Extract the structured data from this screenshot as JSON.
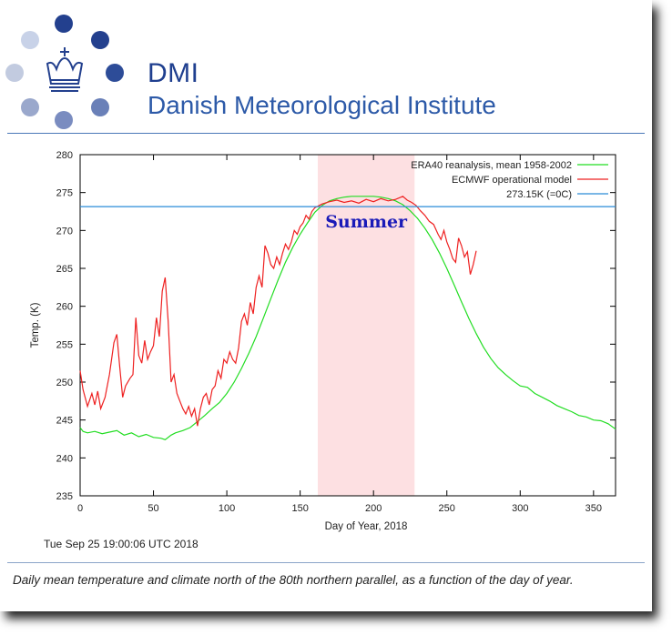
{
  "header": {
    "org_short": "DMI",
    "org_full": "Danish Meteorological Institute",
    "logo_colors": {
      "dark": "#23408e",
      "mid": "#7a90c4",
      "light": "#c8d2e8"
    }
  },
  "timestamp": "Tue Sep 25 19:00:06 UTC 2018",
  "caption": "Daily mean temperature and climate north of the 80th northern parallel, as a function of the day of year.",
  "chart_data": {
    "type": "line",
    "title": "",
    "xlabel": "Day of Year, 2018",
    "ylabel": "Temp. (K)",
    "xlim": [
      0,
      365
    ],
    "ylim": [
      235,
      280
    ],
    "xticks": [
      0,
      50,
      100,
      150,
      200,
      250,
      300,
      350
    ],
    "yticks": [
      235,
      240,
      245,
      250,
      255,
      260,
      265,
      270,
      275,
      280
    ],
    "grid": false,
    "legend_position": "top-right",
    "shaded_region": {
      "label": "Summer",
      "x_start": 162,
      "x_end": 228,
      "color": "#fde0e2"
    },
    "series": [
      {
        "name": "ERA40 reanalysis, mean 1958-2002",
        "color": "#22dd22",
        "x": [
          0,
          2,
          5,
          10,
          15,
          20,
          25,
          30,
          35,
          40,
          45,
          50,
          55,
          58,
          62,
          65,
          70,
          75,
          80,
          85,
          90,
          95,
          100,
          105,
          110,
          115,
          120,
          125,
          130,
          135,
          140,
          145,
          150,
          155,
          160,
          165,
          170,
          175,
          180,
          185,
          190,
          195,
          200,
          205,
          210,
          215,
          220,
          225,
          230,
          235,
          240,
          245,
          250,
          255,
          260,
          265,
          270,
          275,
          280,
          285,
          290,
          295,
          300,
          305,
          310,
          315,
          320,
          325,
          330,
          335,
          340,
          345,
          350,
          355,
          360,
          365
        ],
        "y": [
          244.0,
          243.5,
          243.3,
          243.5,
          243.2,
          243.4,
          243.6,
          243.0,
          243.3,
          242.8,
          243.1,
          242.7,
          242.6,
          242.4,
          243.0,
          243.3,
          243.6,
          244.0,
          244.8,
          245.6,
          246.5,
          247.3,
          248.5,
          250.0,
          251.8,
          253.8,
          256.0,
          258.5,
          261.0,
          263.5,
          265.8,
          267.8,
          269.5,
          271.0,
          272.4,
          273.3,
          273.9,
          274.2,
          274.4,
          274.5,
          274.5,
          274.5,
          274.5,
          274.4,
          274.2,
          273.9,
          273.4,
          272.6,
          271.6,
          270.3,
          268.8,
          267.0,
          265.0,
          262.8,
          260.6,
          258.4,
          256.4,
          254.6,
          253.1,
          251.9,
          251.0,
          250.2,
          249.5,
          249.3,
          248.5,
          248.0,
          247.5,
          246.9,
          246.5,
          246.1,
          245.6,
          245.4,
          245.0,
          244.9,
          244.5,
          243.8
        ]
      },
      {
        "name": "ECMWF operational model",
        "color": "#ee2020",
        "x": [
          0,
          2,
          5,
          8,
          10,
          12,
          14,
          17,
          20,
          23,
          25,
          27,
          29,
          31,
          34,
          36,
          38,
          40,
          42,
          44,
          46,
          48,
          50,
          52,
          54,
          56,
          58,
          60,
          62,
          64,
          66,
          68,
          70,
          72,
          74,
          76,
          78,
          80,
          82,
          84,
          86,
          88,
          90,
          92,
          94,
          96,
          98,
          100,
          102,
          104,
          106,
          108,
          110,
          112,
          114,
          116,
          118,
          120,
          122,
          124,
          126,
          128,
          130,
          132,
          134,
          136,
          138,
          140,
          142,
          144,
          146,
          148,
          150,
          152,
          154,
          156,
          158,
          160,
          165,
          170,
          175,
          180,
          185,
          190,
          195,
          200,
          205,
          210,
          215,
          220,
          223,
          226,
          229,
          232,
          235,
          238,
          241,
          244,
          246,
          248,
          250,
          252,
          254,
          256,
          258,
          260,
          262,
          264,
          266,
          268,
          270
        ],
        "y": [
          251.5,
          249.0,
          246.8,
          248.5,
          247.0,
          248.8,
          246.5,
          248.0,
          251.0,
          255.2,
          256.3,
          252.0,
          248.0,
          249.5,
          250.5,
          251.0,
          258.5,
          253.5,
          252.5,
          255.5,
          253.0,
          254.0,
          254.8,
          258.5,
          256.0,
          262.0,
          263.8,
          258.0,
          250.0,
          251.0,
          248.5,
          247.5,
          246.5,
          245.8,
          246.8,
          245.5,
          246.5,
          244.2,
          246.5,
          248.0,
          248.5,
          247.0,
          249.0,
          249.5,
          251.5,
          250.5,
          253.0,
          252.5,
          254.0,
          253.0,
          252.5,
          254.5,
          258.0,
          259.0,
          257.5,
          260.5,
          259.0,
          262.5,
          264.0,
          262.5,
          268.0,
          267.0,
          265.5,
          265.0,
          266.5,
          265.5,
          267.0,
          268.2,
          267.5,
          268.5,
          270.0,
          269.5,
          270.5,
          271.0,
          272.0,
          271.5,
          272.5,
          273.0,
          273.5,
          273.8,
          274.0,
          273.7,
          273.9,
          273.6,
          274.1,
          273.8,
          274.2,
          273.9,
          274.1,
          274.5,
          274.0,
          273.7,
          273.3,
          272.6,
          272.0,
          271.2,
          270.8,
          269.5,
          268.8,
          270.0,
          268.5,
          267.5,
          266.3,
          265.8,
          269.0,
          268.0,
          266.5,
          267.2,
          264.2,
          265.5,
          267.3
        ]
      },
      {
        "name": "273.15K (=0C)",
        "color": "#2a8cd8",
        "x": [
          0,
          365
        ],
        "y": [
          273.15,
          273.15
        ]
      }
    ]
  }
}
